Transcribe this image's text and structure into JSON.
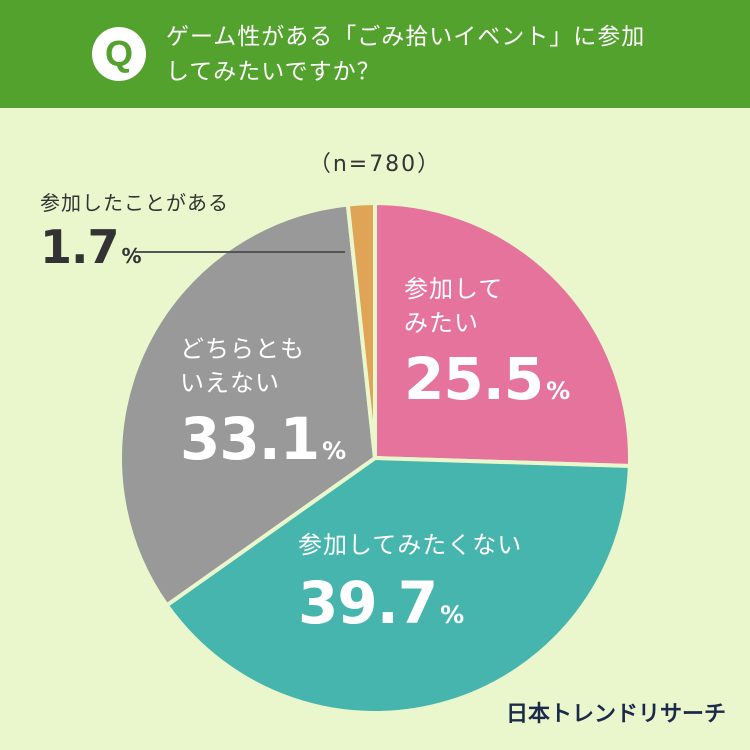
{
  "header": {
    "q_label": "Q",
    "question_line1": "ゲーム性がある「ごみ拾いイベント」に参加",
    "question_line2": "してみたいですか？"
  },
  "chart_data": {
    "type": "pie",
    "sample_label": "（n=780）",
    "unit": "%",
    "slices": [
      {
        "label": "参加してみたい",
        "label_lines": [
          "参加して",
          "みたい"
        ],
        "value": 25.5,
        "value_text": "25.5",
        "color": "#e5739b"
      },
      {
        "label": "参加してみたくない",
        "label_lines": [
          "参加してみたくない"
        ],
        "value": 39.7,
        "value_text": "39.7",
        "color": "#46b5ad"
      },
      {
        "label": "どちらともいえない",
        "label_lines": [
          "どちらとも",
          "いえない"
        ],
        "value": 33.1,
        "value_text": "33.1",
        "color": "#999999"
      },
      {
        "label": "参加したことがある",
        "label_lines": [
          "参加したことがある"
        ],
        "value": 1.7,
        "value_text": "1.7",
        "color": "#e0a456"
      }
    ]
  },
  "footer": {
    "brand": "日本トレンドリサーチ"
  }
}
